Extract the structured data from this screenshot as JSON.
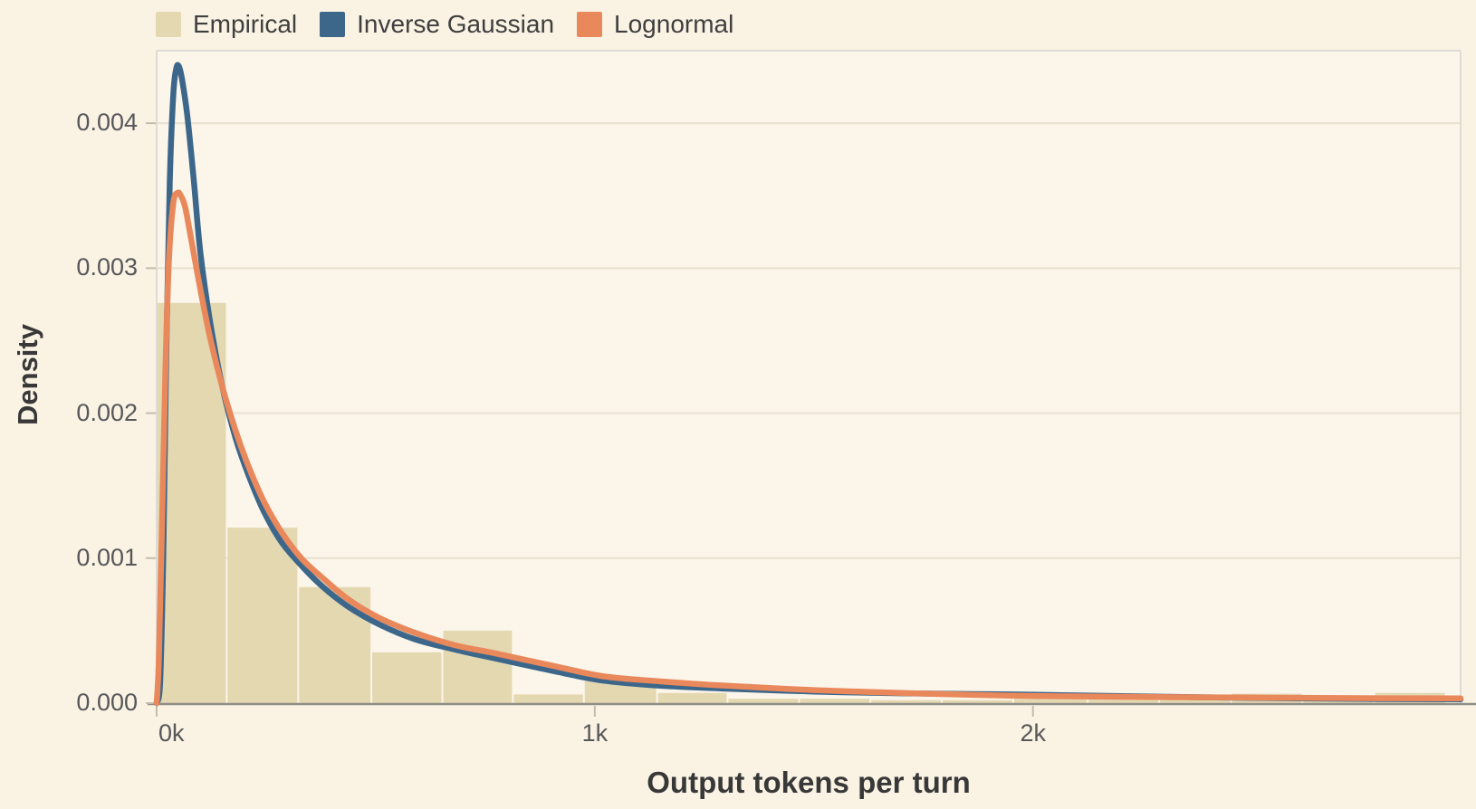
{
  "chart_data": {
    "type": "histogram+line",
    "title": "",
    "xlabel": "Output tokens per turn",
    "ylabel": "Density",
    "xlim": [
      0,
      2976
    ],
    "ylim": [
      0,
      0.0045
    ],
    "grid": "horizontal",
    "legend_position": "top-left",
    "x_ticks": [
      {
        "value": 0,
        "label": "0k"
      },
      {
        "value": 1000,
        "label": "1k"
      },
      {
        "value": 2000,
        "label": "2k"
      }
    ],
    "y_ticks": [
      {
        "value": 0.0,
        "label": "0.000"
      },
      {
        "value": 0.001,
        "label": "0.001"
      },
      {
        "value": 0.002,
        "label": "0.002"
      },
      {
        "value": 0.003,
        "label": "0.003"
      },
      {
        "value": 0.004,
        "label": "0.004"
      }
    ],
    "histogram": {
      "name": "Empirical",
      "color": "#E4D8B1",
      "bin_width_tokens": 163,
      "bins": [
        {
          "x0": 0,
          "x1": 160,
          "density": 0.00276
        },
        {
          "x0": 160,
          "x1": 323,
          "density": 0.00121
        },
        {
          "x0": 323,
          "x1": 490,
          "density": 0.0008
        },
        {
          "x0": 490,
          "x1": 652,
          "density": 0.00035
        },
        {
          "x0": 652,
          "x1": 813,
          "density": 0.0005
        },
        {
          "x0": 813,
          "x1": 975,
          "density": 6e-05
        },
        {
          "x0": 975,
          "x1": 1142,
          "density": 0.00016
        },
        {
          "x0": 1142,
          "x1": 1303,
          "density": 7e-05
        },
        {
          "x0": 1303,
          "x1": 1466,
          "density": 3e-05
        },
        {
          "x0": 1466,
          "x1": 1629,
          "density": 3e-05
        },
        {
          "x0": 1629,
          "x1": 1792,
          "density": 2e-05
        },
        {
          "x0": 1792,
          "x1": 1955,
          "density": 2e-05
        },
        {
          "x0": 1955,
          "x1": 2125,
          "density": 3e-05
        },
        {
          "x0": 2125,
          "x1": 2288,
          "density": 4e-05
        },
        {
          "x0": 2288,
          "x1": 2452,
          "density": 3e-05
        },
        {
          "x0": 2452,
          "x1": 2615,
          "density": 6.5e-05
        },
        {
          "x0": 2615,
          "x1": 2779,
          "density": 2e-05
        },
        {
          "x0": 2779,
          "x1": 2942,
          "density": 7e-05
        }
      ]
    },
    "series": [
      {
        "name": "Inverse Gaussian",
        "color": "#3C678B",
        "peak": {
          "x": 50,
          "density": 0.00439
        },
        "x": [
          0,
          8,
          15,
          22,
          30,
          38,
          45,
          51,
          58,
          70,
          85,
          100,
          122,
          150,
          180,
          210,
          245,
          285,
          330,
          380,
          440,
          510,
          590,
          680,
          770,
          900,
          1020,
          1150,
          1300,
          1500,
          1700,
          1950,
          2200,
          2500,
          2800,
          2976
        ],
        "y": [
          0,
          0.00015,
          0.001,
          0.0024,
          0.0036,
          0.0042,
          0.00438,
          0.00439,
          0.0043,
          0.00405,
          0.0036,
          0.0031,
          0.00263,
          0.00218,
          0.00183,
          0.00157,
          0.00132,
          0.00111,
          0.00095,
          0.0008,
          0.00066,
          0.00054,
          0.00044,
          0.00037,
          0.00031,
          0.000225,
          0.000155,
          0.00012,
          0.0001,
          8e-05,
          6.8e-05,
          6e-05,
          4.8e-05,
          3.6e-05,
          2.8e-05,
          2.6e-05
        ]
      },
      {
        "name": "Lognormal",
        "color": "#E9885B",
        "peak": {
          "x": 55,
          "density": 0.00352
        },
        "x": [
          0,
          5,
          12,
          20,
          28,
          38,
          48,
          55,
          65,
          80,
          100,
          122,
          150,
          180,
          210,
          245,
          285,
          330,
          380,
          440,
          510,
          590,
          680,
          770,
          900,
          1020,
          1150,
          1300,
          1500,
          1700,
          1950,
          2200,
          2500,
          2800,
          2976
        ],
        "y": [
          0,
          0.0003,
          0.0012,
          0.0023,
          0.00305,
          0.00345,
          0.00352,
          0.0035,
          0.00342,
          0.00318,
          0.00285,
          0.00252,
          0.00218,
          0.00188,
          0.00163,
          0.00139,
          0.00118,
          0.001,
          0.00086,
          0.00071,
          0.000585,
          0.000485,
          0.0004,
          0.000345,
          0.00026,
          0.000185,
          0.00015,
          0.00012,
          9e-05,
          7e-05,
          5.2e-05,
          4.4e-05,
          3.8e-05,
          3.4e-05,
          3.3e-05
        ]
      }
    ],
    "colors": {
      "background": "#FAF3E4",
      "plot_background": "#FBF5EA",
      "gridline": "#E9E2D1",
      "plot_border": "#DDDBD5",
      "axis_line": "#8F8D87",
      "tick_mark": "#C3BDAE",
      "tick_label": "#57575A",
      "axis_title": "#383838",
      "legend_text": "#3F3F3F"
    }
  }
}
